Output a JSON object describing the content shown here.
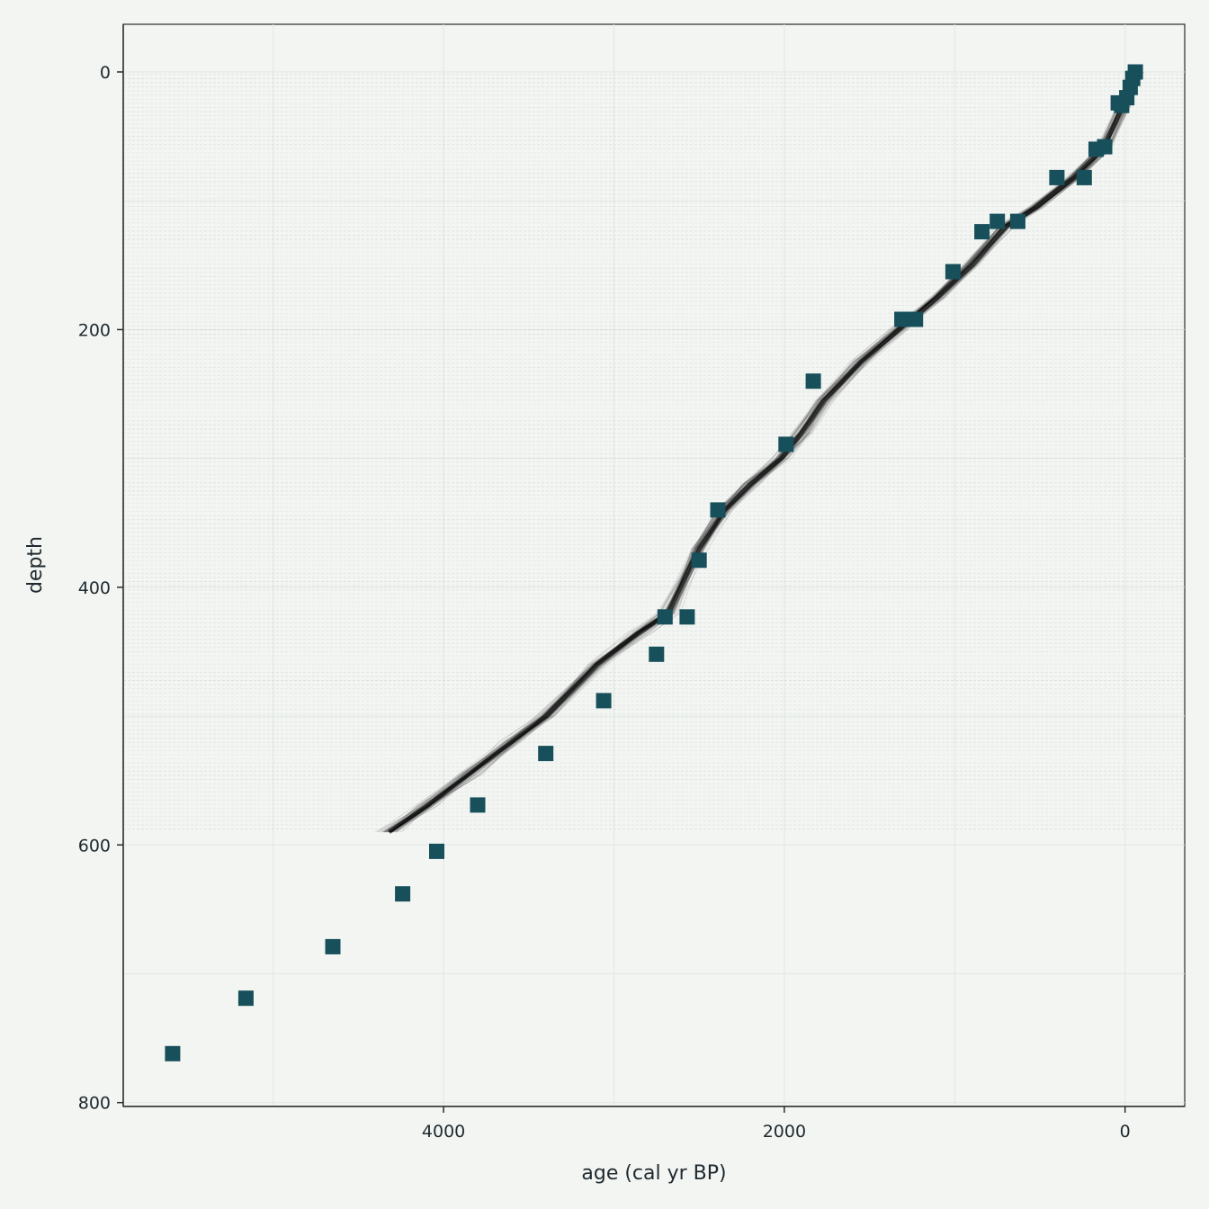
{
  "chart_data": {
    "type": "scatter",
    "title": "",
    "xlabel": "age (cal yr BP)",
    "ylabel": "depth",
    "x_reversed": true,
    "y_reversed": true,
    "xlim": [
      -350,
      5880
    ],
    "ylim": [
      -37,
      803
    ],
    "xticks": [
      4000,
      2000,
      0
    ],
    "yticks": [
      0,
      200,
      400,
      600,
      800
    ],
    "grid": true,
    "legend": "none",
    "point_color": "#174f5a",
    "ensemble_color": "#000000",
    "series": [
      {
        "kind": "points",
        "marker": "square",
        "points": [
          [
            -60,
            0
          ],
          [
            -45,
            5
          ],
          [
            -30,
            12
          ],
          [
            -10,
            20
          ],
          [
            20,
            26
          ],
          [
            40,
            24
          ],
          [
            170,
            60
          ],
          [
            120,
            58
          ],
          [
            400,
            82
          ],
          [
            240,
            82
          ],
          [
            750,
            116
          ],
          [
            630,
            116
          ],
          [
            840,
            124
          ],
          [
            1010,
            155
          ],
          [
            1310,
            192
          ],
          [
            1230,
            192
          ],
          [
            1830,
            240
          ],
          [
            1990,
            289
          ],
          [
            2390,
            340
          ],
          [
            2500,
            379
          ],
          [
            2700,
            423
          ],
          [
            2570,
            423
          ],
          [
            2750,
            452
          ],
          [
            3060,
            488
          ],
          [
            3400,
            529
          ],
          [
            3800,
            569
          ],
          [
            4040,
            605
          ],
          [
            4240,
            638
          ],
          [
            4650,
            679
          ],
          [
            5160,
            719
          ],
          [
            5590,
            762
          ]
        ]
      },
      {
        "kind": "age-model-ensemble",
        "line": [
          [
            -60,
            0
          ],
          [
            10,
            25
          ],
          [
            130,
            60
          ],
          [
            300,
            82
          ],
          [
            520,
            105
          ],
          [
            700,
            120
          ],
          [
            900,
            150
          ],
          [
            1100,
            175
          ],
          [
            1330,
            200
          ],
          [
            1550,
            225
          ],
          [
            1770,
            255
          ],
          [
            1900,
            280
          ],
          [
            2020,
            300
          ],
          [
            2200,
            320
          ],
          [
            2350,
            340
          ],
          [
            2500,
            370
          ],
          [
            2680,
            420
          ],
          [
            2850,
            435
          ],
          [
            3100,
            460
          ],
          [
            3400,
            500
          ],
          [
            3600,
            520
          ],
          [
            3850,
            545
          ],
          [
            4100,
            570
          ],
          [
            4320,
            590
          ]
        ]
      }
    ]
  }
}
